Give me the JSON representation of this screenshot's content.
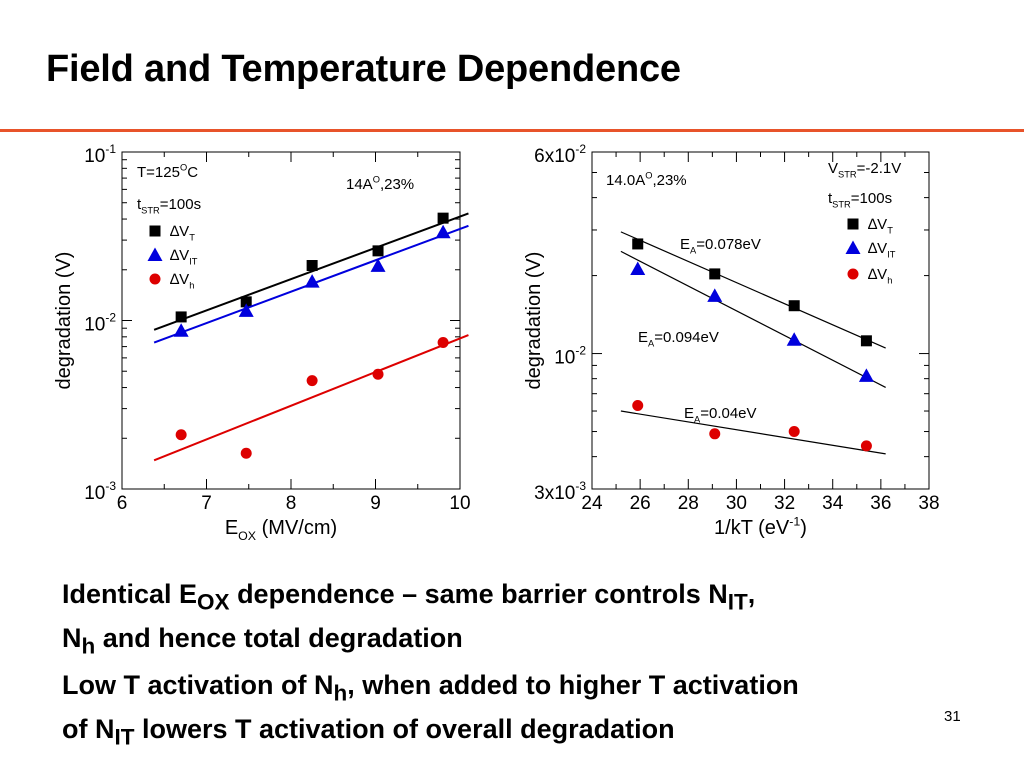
{
  "slide": {
    "title": "Field and Temperature Dependence",
    "accent_color": "#e8532a",
    "page_number": "31"
  },
  "bullets": [
    [
      {
        "t": "Identical E"
      },
      {
        "t": "OX",
        "sub": true
      },
      {
        "t": " dependence – same barrier controls N"
      },
      {
        "t": "IT",
        "sub": true
      },
      {
        "t": ","
      },
      {
        "br": true
      },
      {
        "t": "N"
      },
      {
        "t": "h",
        "sub": true
      },
      {
        "t": " and hence total degradation"
      }
    ],
    [
      {
        "t": "Low T activation of N"
      },
      {
        "t": "h",
        "sub": true
      },
      {
        "t": ", when added to higher T activation"
      },
      {
        "br": true
      },
      {
        "t": "of N"
      },
      {
        "t": "IT",
        "sub": true
      },
      {
        "t": " lowers T activation of overall degradation"
      }
    ]
  ],
  "chart_data": [
    {
      "type": "scatter",
      "yscale": "log",
      "xlim": [
        6,
        10
      ],
      "ylim": [
        0.001,
        0.1
      ],
      "xticks": [
        "6",
        "7",
        "8",
        "9",
        "10"
      ],
      "yticks": [
        {
          "value": 0.1,
          "base": "10",
          "exp": "-1"
        },
        {
          "value": 0.01,
          "base": "10",
          "exp": "-2"
        },
        {
          "value": 0.001,
          "base": "10",
          "exp": "-3"
        }
      ],
      "xlabel": [
        {
          "t": "E"
        },
        {
          "t": "OX",
          "sub": true
        },
        {
          "t": " (MV/cm)"
        }
      ],
      "ylabel": [
        {
          "t": "degradation (V)"
        }
      ],
      "annotations": [
        {
          "id": "cond",
          "parts": [
            {
              "t": "14A"
            },
            {
              "t": "O",
              "sup": true
            },
            {
              "t": ",23%"
            }
          ]
        }
      ],
      "legend": {
        "placement": "top-left",
        "header": [
          [
            {
              "t": "T=125"
            },
            {
              "t": "O",
              "sup": true
            },
            {
              "t": "C"
            }
          ],
          [
            {
              "t": "t"
            },
            {
              "t": "STR",
              "sub": true
            },
            {
              "t": "=100s"
            }
          ]
        ]
      },
      "series": [
        {
          "name": [
            {
              "t": "∆V"
            },
            {
              "t": "T",
              "sub": true
            }
          ],
          "marker": "square",
          "color": "#000000",
          "x": [
            6.7,
            7.47,
            8.25,
            9.03,
            9.8
          ],
          "y": [
            0.0105,
            0.0129,
            0.0212,
            0.0259,
            0.0405
          ],
          "fit": {
            "x": [
              6.38,
              10.1
            ],
            "y": [
              0.0088,
              0.0432
            ]
          }
        },
        {
          "name": [
            {
              "t": "∆V"
            },
            {
              "t": "IT",
              "sub": true
            }
          ],
          "marker": "triangle",
          "color": "#0000dd",
          "x": [
            6.7,
            7.47,
            8.25,
            9.03,
            9.8
          ],
          "y": [
            0.0087,
            0.0114,
            0.017,
            0.0211,
            0.0334
          ],
          "fit": {
            "x": [
              6.38,
              10.1
            ],
            "y": [
              0.0074,
              0.0365
            ]
          }
        },
        {
          "name": [
            {
              "t": "∆V"
            },
            {
              "t": "h",
              "sub": true
            }
          ],
          "marker": "circle",
          "color": "#dd0000",
          "x": [
            6.7,
            7.47,
            8.25,
            9.03,
            9.8
          ],
          "y": [
            0.0021,
            0.00163,
            0.0044,
            0.0048,
            0.0074
          ],
          "fit": {
            "x": [
              6.38,
              10.1
            ],
            "y": [
              0.00148,
              0.0082
            ]
          }
        }
      ]
    },
    {
      "type": "scatter",
      "yscale": "log",
      "xlim": [
        24,
        38
      ],
      "ylim": [
        0.003,
        0.06
      ],
      "xticks": [
        "24",
        "26",
        "28",
        "30",
        "32",
        "34",
        "36",
        "38"
      ],
      "yticks": [
        {
          "value": 0.06,
          "base": "6x10",
          "exp": "-2"
        },
        {
          "value": 0.01,
          "base": "10",
          "exp": "-2"
        },
        {
          "value": 0.003,
          "base": "3x10",
          "exp": "-3"
        }
      ],
      "xlabel": [
        {
          "t": "1/kT (eV"
        },
        {
          "t": "-1",
          "sup": true
        },
        {
          "t": ")"
        }
      ],
      "ylabel": [
        {
          "t": "degradation (V)"
        }
      ],
      "annotations": [
        {
          "id": "cond",
          "parts": [
            {
              "t": "14.0A"
            },
            {
              "t": "O",
              "sup": true
            },
            {
              "t": ",23%"
            }
          ]
        },
        {
          "id": "ea-t",
          "parts": [
            {
              "t": "E"
            },
            {
              "t": "A",
              "sub": true
            },
            {
              "t": "=0.078eV"
            }
          ]
        },
        {
          "id": "ea-it",
          "parts": [
            {
              "t": "E"
            },
            {
              "t": "A",
              "sub": true
            },
            {
              "t": "=0.094eV"
            }
          ]
        },
        {
          "id": "ea-h",
          "parts": [
            {
              "t": "E"
            },
            {
              "t": "A",
              "sub": true
            },
            {
              "t": "=0.04eV"
            }
          ]
        }
      ],
      "legend": {
        "placement": "top-right",
        "header": [
          [
            {
              "t": "V"
            },
            {
              "t": "STR",
              "sub": true
            },
            {
              "t": "=-2.1V"
            }
          ],
          [
            {
              "t": "t"
            },
            {
              "t": "STR",
              "sub": true
            },
            {
              "t": "=100s"
            }
          ]
        ]
      },
      "series": [
        {
          "name": [
            {
              "t": "∆V"
            },
            {
              "t": "T",
              "sub": true
            }
          ],
          "marker": "square",
          "color": "#000000",
          "x": [
            25.9,
            29.1,
            32.4,
            35.4
          ],
          "y": [
            0.0265,
            0.0203,
            0.0153,
            0.0112
          ],
          "fit": {
            "x": [
              25.2,
              36.2
            ],
            "y": [
              0.0295,
              0.0105
            ]
          }
        },
        {
          "name": [
            {
              "t": "∆V"
            },
            {
              "t": "IT",
              "sub": true
            }
          ],
          "marker": "triangle",
          "color": "#0000dd",
          "x": [
            25.9,
            29.1,
            32.4,
            35.4
          ],
          "y": [
            0.0212,
            0.0167,
            0.0113,
            0.0082
          ],
          "fit": {
            "x": [
              25.2,
              36.2
            ],
            "y": [
              0.0248,
              0.0074
            ]
          }
        },
        {
          "name": [
            {
              "t": "∆V"
            },
            {
              "t": "h",
              "sub": true
            }
          ],
          "marker": "circle",
          "color": "#dd0000",
          "x": [
            25.9,
            29.1,
            32.4,
            35.4
          ],
          "y": [
            0.0063,
            0.0049,
            0.005,
            0.0044
          ],
          "fit": {
            "x": [
              25.2,
              36.2
            ],
            "y": [
              0.006,
              0.0041
            ]
          }
        }
      ]
    }
  ]
}
